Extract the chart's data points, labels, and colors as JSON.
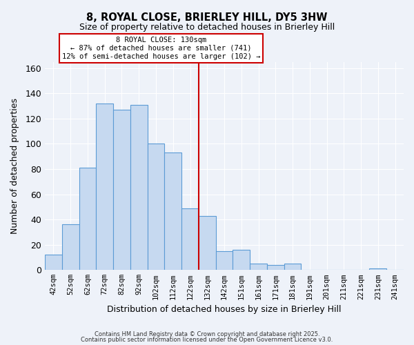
{
  "title": "8, ROYAL CLOSE, BRIERLEY HILL, DY5 3HW",
  "subtitle": "Size of property relative to detached houses in Brierley Hill",
  "xlabel": "Distribution of detached houses by size in Brierley Hill",
  "ylabel": "Number of detached properties",
  "bar_labels": [
    "42sqm",
    "52sqm",
    "62sqm",
    "72sqm",
    "82sqm",
    "92sqm",
    "102sqm",
    "112sqm",
    "122sqm",
    "132sqm",
    "142sqm",
    "151sqm",
    "161sqm",
    "171sqm",
    "181sqm",
    "191sqm",
    "201sqm",
    "211sqm",
    "221sqm",
    "231sqm",
    "241sqm"
  ],
  "bar_values": [
    12,
    36,
    81,
    132,
    127,
    131,
    100,
    93,
    49,
    43,
    15,
    16,
    5,
    4,
    5,
    0,
    0,
    0,
    0,
    1,
    0
  ],
  "bar_color": "#c6d9f0",
  "bar_edge_color": "#5b9bd5",
  "vline_x": 9,
  "vline_color": "#cc0000",
  "annotation_title": "8 ROYAL CLOSE: 130sqm",
  "annotation_line2": "← 87% of detached houses are smaller (741)",
  "annotation_line3": "12% of semi-detached houses are larger (102) →",
  "annotation_box_color": "#ffffff",
  "annotation_box_edge": "#cc0000",
  "ylim": [
    0,
    165
  ],
  "background_color": "#eef2f9",
  "grid_color": "#ffffff",
  "footer_line1": "Contains HM Land Registry data © Crown copyright and database right 2025.",
  "footer_line2": "Contains public sector information licensed under the Open Government Licence v3.0."
}
